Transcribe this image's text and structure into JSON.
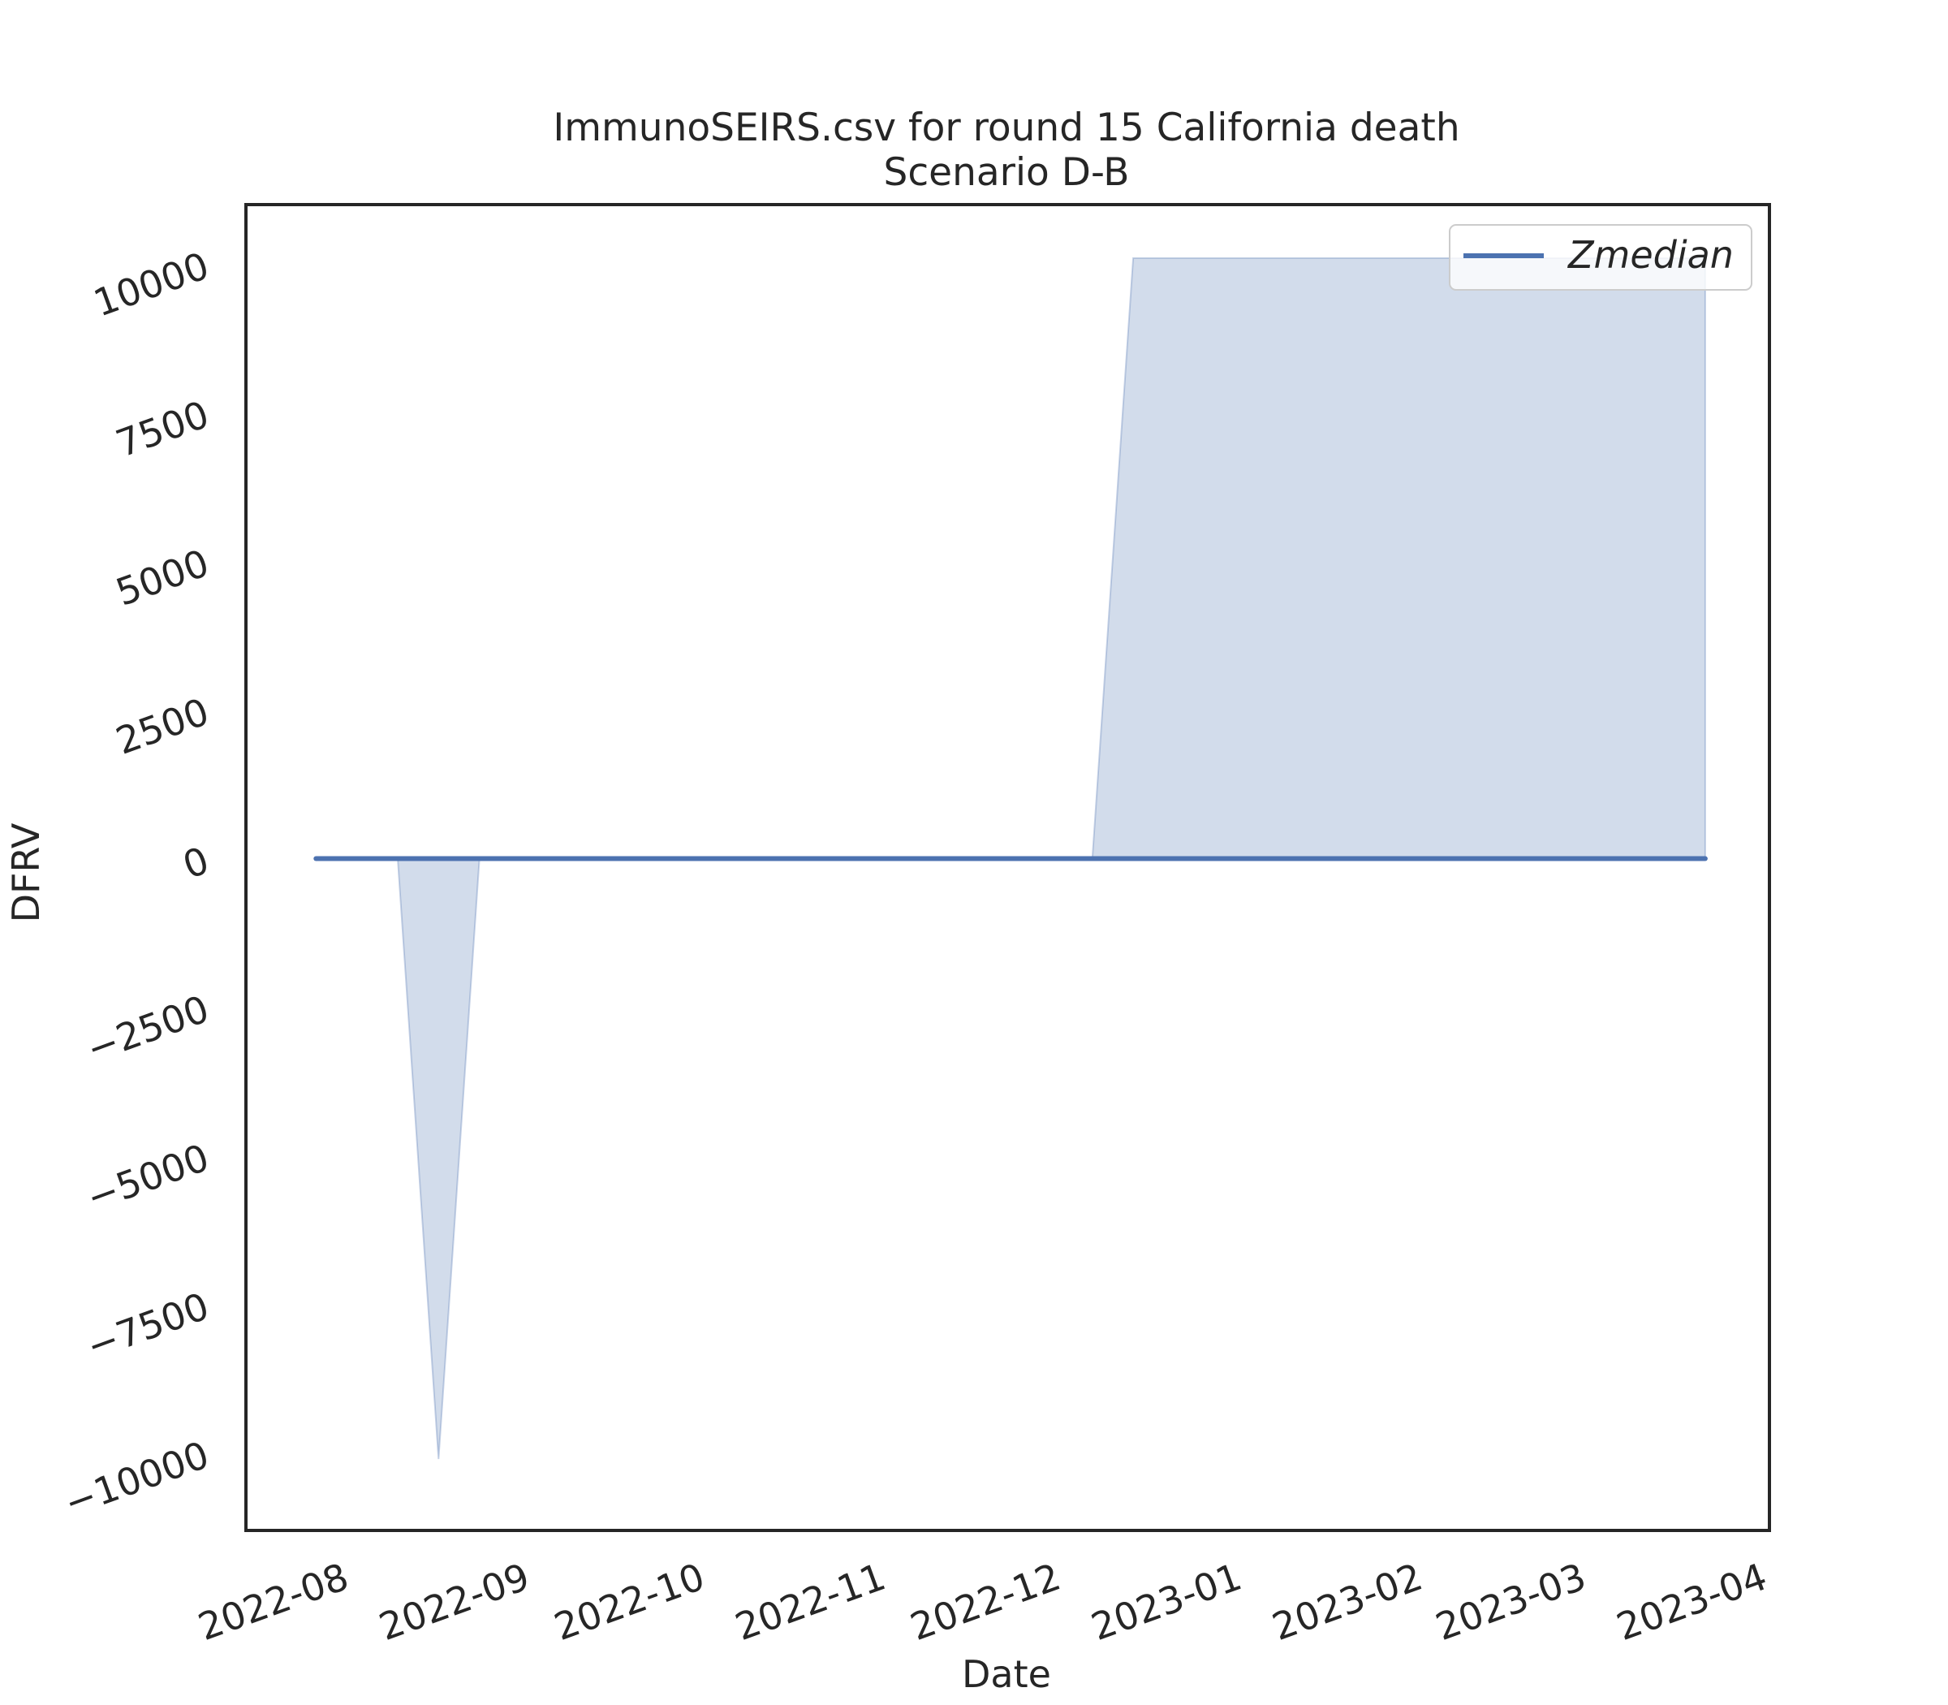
{
  "chart_data": {
    "type": "line",
    "title": "ImmunoSEIRS.csv for round 15 California death",
    "subtitle": "Scenario D-B",
    "xlabel": "Date",
    "ylabel": "DFRV",
    "xlim": [
      "2022-07-14",
      "2023-04-01"
    ],
    "ylim": [
      -11300,
      11000
    ],
    "x_ticks": [
      "2022-08",
      "2022-09",
      "2022-10",
      "2022-11",
      "2022-12",
      "2023-01",
      "2023-02",
      "2023-03",
      "2023-04"
    ],
    "y_ticks": [
      -10000,
      -7500,
      -5000,
      -2500,
      0,
      2500,
      5000,
      7500,
      10000
    ],
    "grid": false,
    "legend": {
      "placement": "upper-right",
      "entries": [
        "Zmedian"
      ]
    },
    "series": [
      {
        "name": "Zmedian",
        "color": "#4c72b0",
        "x": [
          "2022-07-26",
          "2022-08-09",
          "2022-08-16",
          "2022-08-23",
          "2022-12-06",
          "2022-12-13",
          "2023-03-21"
        ],
        "values": [
          0,
          0,
          0,
          0,
          0,
          0,
          0
        ]
      }
    ],
    "band": {
      "color": "#4c72b0",
      "opacity": 0.25,
      "x": [
        "2022-07-26",
        "2022-08-09",
        "2022-08-16",
        "2022-08-23",
        "2022-12-06",
        "2022-12-13",
        "2023-03-21"
      ],
      "lower": [
        0,
        0,
        -10100,
        0,
        0,
        0,
        0
      ],
      "upper": [
        0,
        0,
        0,
        0,
        0,
        10100,
        10100
      ]
    }
  }
}
